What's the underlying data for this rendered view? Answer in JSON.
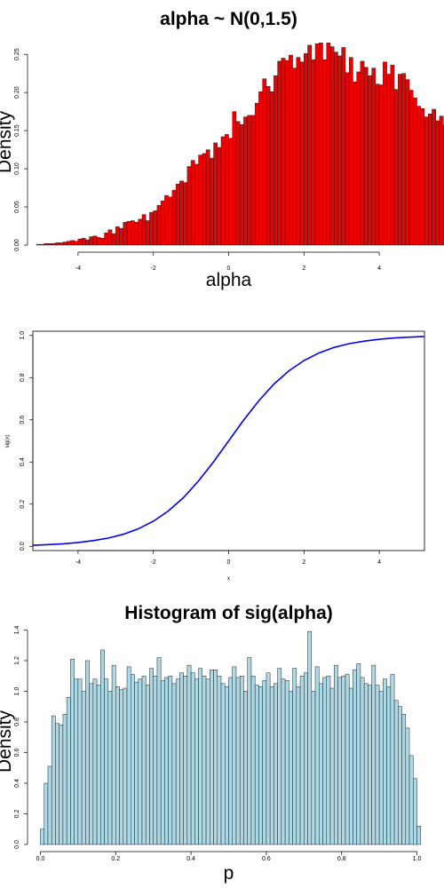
{
  "chart_data": [
    {
      "type": "bar",
      "title": "alpha ~ N(0,1.5)",
      "xlabel": "alpha",
      "ylabel": "Density",
      "xlim": [
        -5.2,
        5.2
      ],
      "ylim": [
        0,
        0.27
      ],
      "xticks": [
        "-4",
        "-2",
        "0",
        "2",
        "4"
      ],
      "yticks": [
        "0.00",
        "0.05",
        "0.10",
        "0.15",
        "0.20",
        "0.25"
      ],
      "bin_start": -5.1,
      "bin_width": 0.1,
      "values": [
        0.001,
        0.001,
        0.002,
        0.002,
        0.002,
        0.003,
        0.003,
        0.004,
        0.005,
        0.006,
        0.005,
        0.008,
        0.009,
        0.007,
        0.011,
        0.012,
        0.01,
        0.009,
        0.016,
        0.02,
        0.015,
        0.024,
        0.022,
        0.03,
        0.031,
        0.032,
        0.03,
        0.034,
        0.04,
        0.032,
        0.043,
        0.045,
        0.052,
        0.058,
        0.065,
        0.063,
        0.072,
        0.08,
        0.084,
        0.082,
        0.103,
        0.111,
        0.106,
        0.118,
        0.12,
        0.125,
        0.114,
        0.134,
        0.128,
        0.142,
        0.145,
        0.14,
        0.175,
        0.162,
        0.158,
        0.168,
        0.17,
        0.17,
        0.186,
        0.201,
        0.218,
        0.208,
        0.201,
        0.222,
        0.241,
        0.245,
        0.242,
        0.249,
        0.232,
        0.246,
        0.24,
        0.251,
        0.262,
        0.243,
        0.264,
        0.265,
        0.243,
        0.265,
        0.26,
        0.253,
        0.248,
        0.259,
        0.226,
        0.246,
        0.214,
        0.227,
        0.241,
        0.233,
        0.222,
        0.232,
        0.211,
        0.21,
        0.24,
        0.224,
        0.236,
        0.204,
        0.224,
        0.225,
        0.217,
        0.203,
        0.193,
        0.182,
        0.179,
        0.168,
        0.172,
        0.178,
        0.163,
        0.169,
        0.157,
        0.152,
        0.142,
        0.15,
        0.137,
        0.131,
        0.137,
        0.12,
        0.131,
        0.112,
        0.108,
        0.102,
        0.095,
        0.11,
        0.087,
        0.084,
        0.078,
        0.07,
        0.07,
        0.064,
        0.068,
        0.055,
        0.05,
        0.051,
        0.048,
        0.046,
        0.044,
        0.045,
        0.038,
        0.035,
        0.037,
        0.036,
        0.037,
        0.03,
        0.028,
        0.026,
        0.025,
        0.022,
        0.02,
        0.021,
        0.017,
        0.018,
        0.014,
        0.013,
        0.012,
        0.011,
        0.013,
        0.01,
        0.008,
        0.006,
        0.009,
        0.008,
        0.006,
        0.005,
        0.004,
        0.004,
        0.003,
        0.003,
        0.002,
        0.002,
        0.001
      ]
    },
    {
      "type": "line",
      "title": "",
      "xlabel": "x",
      "ylabel": "sig(x)",
      "xlim": [
        -5.2,
        5.2
      ],
      "ylim": [
        -0.02,
        1.02
      ],
      "xticks": [
        "-4",
        "-2",
        "0",
        "2",
        "4"
      ],
      "yticks": [
        "0.0",
        "0.2",
        "0.4",
        "0.6",
        "0.8",
        "1.0"
      ],
      "color": "#0000ee",
      "x": [
        -5.2,
        -4.8,
        -4.4,
        -4.0,
        -3.6,
        -3.2,
        -2.8,
        -2.4,
        -2.0,
        -1.6,
        -1.2,
        -0.8,
        -0.4,
        0.0,
        0.4,
        0.8,
        1.2,
        1.6,
        2.0,
        2.4,
        2.8,
        3.2,
        3.6,
        4.0,
        4.4,
        4.8,
        5.2
      ],
      "y": [
        0.005,
        0.008,
        0.012,
        0.018,
        0.027,
        0.039,
        0.057,
        0.083,
        0.119,
        0.168,
        0.231,
        0.31,
        0.401,
        0.5,
        0.599,
        0.69,
        0.769,
        0.832,
        0.881,
        0.917,
        0.943,
        0.961,
        0.973,
        0.982,
        0.988,
        0.992,
        0.995
      ]
    },
    {
      "type": "bar",
      "title": "Histogram of sig(alpha)",
      "xlabel": "p",
      "ylabel": "Density",
      "xlim": [
        -0.02,
        1.02
      ],
      "ylim": [
        0,
        1.42
      ],
      "xticks": [
        "0.0",
        "0.2",
        "0.4",
        "0.6",
        "0.8",
        "1.0"
      ],
      "yticks": [
        "0.0",
        "0.2",
        "0.4",
        "0.6",
        "0.8",
        "1.0",
        "1.2",
        "1.4"
      ],
      "bin_start": 0.0,
      "bin_width": 0.01,
      "values": [
        0.1,
        0.4,
        0.51,
        0.84,
        0.79,
        0.78,
        0.85,
        0.96,
        1.21,
        1.08,
        1.08,
        1.0,
        1.2,
        1.05,
        1.08,
        1.04,
        1.27,
        1.08,
        1.0,
        1.17,
        1.03,
        1.01,
        1.02,
        1.16,
        1.11,
        1.06,
        1.08,
        1.1,
        1.04,
        1.15,
        1.1,
        1.22,
        1.07,
        1.09,
        1.1,
        1.05,
        1.08,
        1.12,
        1.1,
        1.17,
        1.12,
        1.08,
        1.15,
        1.1,
        1.08,
        1.14,
        1.14,
        1.1,
        1.05,
        1.03,
        1.09,
        1.16,
        1.09,
        1.1,
        1.0,
        1.22,
        1.1,
        1.04,
        1.03,
        1.07,
        1.12,
        1.03,
        1.05,
        1.15,
        1.08,
        1.07,
        1.0,
        1.15,
        1.03,
        1.1,
        1.12,
        1.39,
        1.0,
        1.16,
        1.05,
        1.09,
        1.1,
        1.02,
        1.17,
        1.09,
        1.1,
        1.11,
        1.02,
        1.14,
        1.18,
        1.09,
        1.05,
        1.04,
        1.17,
        1.04,
        1.0,
        1.08,
        1.03,
        1.11,
        0.94,
        0.9,
        0.85,
        0.76,
        0.58,
        0.43,
        0.12
      ]
    }
  ]
}
